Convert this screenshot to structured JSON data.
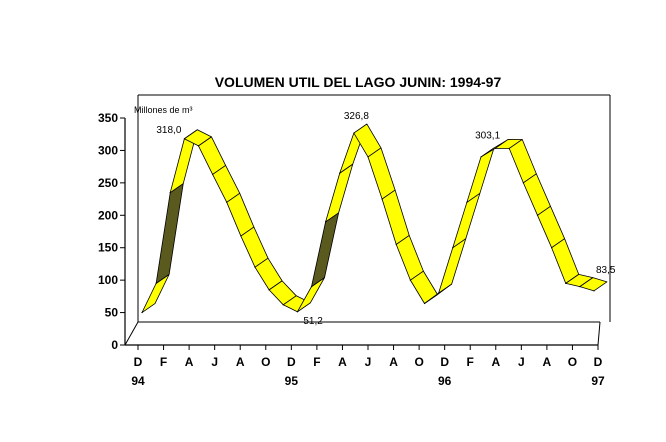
{
  "chart_data": {
    "type": "line",
    "style": "3d-ribbon",
    "title": "VOLUMEN UTIL DEL LAGO JUNIN: 1994-97",
    "ylabel": "Millones de m³",
    "xlabel": "",
    "ylim": [
      0,
      350
    ],
    "yticks": [
      0,
      50,
      100,
      150,
      200,
      250,
      300,
      350
    ],
    "grid": false,
    "legend": "none",
    "x_ticks": [
      {
        "label": "D",
        "year": "94"
      },
      {
        "label": "F",
        "year": ""
      },
      {
        "label": "A",
        "year": ""
      },
      {
        "label": "J",
        "year": ""
      },
      {
        "label": "A",
        "year": ""
      },
      {
        "label": "O",
        "year": ""
      },
      {
        "label": "D",
        "year": "95"
      },
      {
        "label": "F",
        "year": ""
      },
      {
        "label": "A",
        "year": ""
      },
      {
        "label": "J",
        "year": ""
      },
      {
        "label": "A",
        "year": ""
      },
      {
        "label": "O",
        "year": ""
      },
      {
        "label": "D",
        "year": "96"
      },
      {
        "label": "F",
        "year": ""
      },
      {
        "label": "A",
        "year": ""
      },
      {
        "label": "J",
        "year": ""
      },
      {
        "label": "A",
        "year": ""
      },
      {
        "label": "O",
        "year": ""
      },
      {
        "label": "D",
        "year": "97"
      }
    ],
    "series": [
      {
        "values": [
          50,
          95,
          235,
          318.0,
          307,
          263,
          220,
          168,
          120,
          85,
          62,
          51.2,
          90,
          190,
          265,
          326.8,
          290,
          225,
          155,
          100,
          64,
          80,
          150,
          220,
          290,
          303.1,
          303,
          250,
          200,
          150,
          95,
          90,
          83.5
        ],
        "point_labels": [
          {
            "index": 3,
            "text": "318,0"
          },
          {
            "index": 11,
            "text": "51,2"
          },
          {
            "index": 15,
            "text": "326,8"
          },
          {
            "index": 25,
            "text": "303,1"
          },
          {
            "index": 32,
            "text": "83,5"
          }
        ]
      }
    ],
    "colors": {
      "ribbon_front": "#ffff00",
      "ribbon_back": "#5a5a1e",
      "axis": "#000000",
      "background": "#ffffff"
    }
  }
}
